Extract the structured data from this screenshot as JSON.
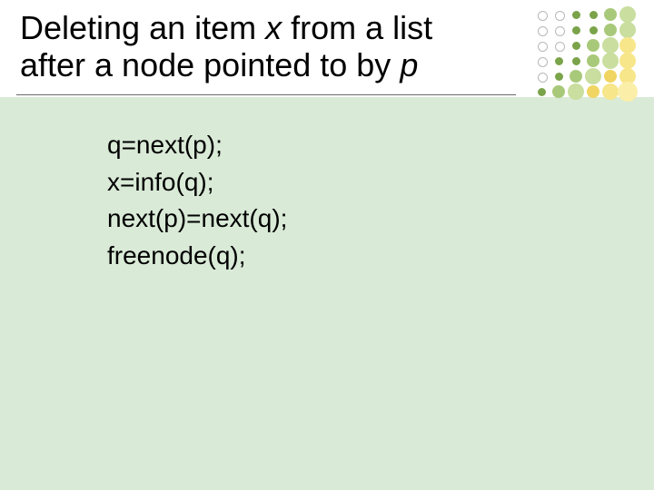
{
  "title": {
    "line1_pre": "Deleting an item ",
    "var1": "x",
    "line1_post": " from a list",
    "line2_pre": "after a node pointed to by ",
    "var2": "p"
  },
  "code": {
    "lines": [
      "q=next(p);",
      "x=info(q);",
      "next(p)=next(q);",
      "freenode(q);"
    ]
  },
  "dots": {
    "grid": {
      "cols": 6,
      "rows": 6,
      "step_x": 19,
      "step_y": 17
    },
    "styles": {
      "small_outline": {
        "size": 9,
        "fill": "none",
        "border": "#b8b8b8",
        "border_width": 1
      },
      "small_green": {
        "size": 9,
        "fill": "#7aa34a",
        "border": "none",
        "border_width": 0
      },
      "med_green": {
        "size": 14,
        "fill": "#a9c97a",
        "border": "none",
        "border_width": 0
      },
      "big_green": {
        "size": 18,
        "fill": "#c9de9f",
        "border": "none",
        "border_width": 0
      },
      "med_yellow": {
        "size": 14,
        "fill": "#f1d562",
        "border": "none",
        "border_width": 0
      },
      "big_yellow": {
        "size": 18,
        "fill": "#f7e68a",
        "border": "none",
        "border_width": 0
      },
      "giant_yellow": {
        "size": 22,
        "fill": "#fbeea8",
        "border": "none",
        "border_width": 0
      }
    },
    "layout": [
      [
        "small_outline",
        "small_outline",
        "small_green",
        "small_green",
        "med_green",
        "big_green"
      ],
      [
        "small_outline",
        "small_outline",
        "small_green",
        "small_green",
        "med_green",
        "big_green"
      ],
      [
        "small_outline",
        "small_outline",
        "small_green",
        "med_green",
        "big_green",
        "big_yellow"
      ],
      [
        "small_outline",
        "small_green",
        "small_green",
        "med_green",
        "big_green",
        "big_yellow"
      ],
      [
        "small_outline",
        "small_green",
        "med_green",
        "big_green",
        "med_yellow",
        "big_yellow"
      ],
      [
        "small_green",
        "med_green",
        "big_green",
        "med_yellow",
        "big_yellow",
        "giant_yellow"
      ]
    ]
  },
  "colors": {
    "slide_background": "#d9ead7",
    "title_background": "#ffffff",
    "rule": "#6b6b6b",
    "text": "#000000"
  },
  "typography": {
    "title_fontsize": 36,
    "code_fontsize": 28,
    "font_family": "Arial"
  }
}
